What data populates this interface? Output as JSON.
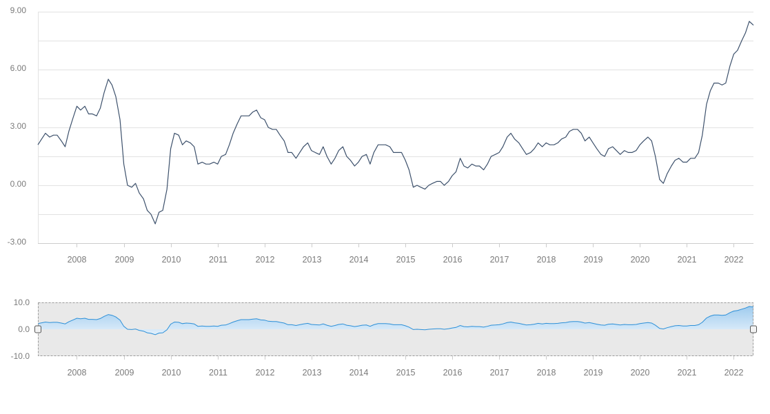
{
  "colors": {
    "main_line": "#3c506b",
    "grid": "#e2e2e2",
    "axis": "#cccccc",
    "label": "#7a7a7a",
    "navigator_line": "#2b8fd8",
    "navigator_fill_top": "#9fcbee",
    "navigator_fill_bottom": "#e3f0fb",
    "navigator_mask": "#e9e9e9",
    "navigator_border": "#999999"
  },
  "chart_data": [
    {
      "name": "main-chart",
      "type": "line",
      "ylim": [
        -3,
        9
      ],
      "y_ticks": [
        "9.00",
        "6.00",
        "3.00",
        "0.00",
        "-3.00"
      ],
      "y_tick_values": [
        9,
        6,
        3,
        0,
        -3
      ],
      "x_ticks": [
        "2008",
        "2009",
        "2010",
        "2011",
        "2012",
        "2013",
        "2014",
        "2015",
        "2016",
        "2017",
        "2018",
        "2019",
        "2020",
        "2021",
        "2022"
      ],
      "x_tick_values": [
        2008,
        2009,
        2010,
        2011,
        2012,
        2013,
        2014,
        2015,
        2016,
        2017,
        2018,
        2019,
        2020,
        2021,
        2022
      ],
      "xlim": [
        2007.17,
        2022.42
      ],
      "grid": true,
      "series": [
        {
          "x": [
            2007.17,
            2007.25,
            2007.33,
            2007.42,
            2007.5,
            2007.58,
            2007.67,
            2007.75,
            2007.83,
            2007.92,
            2008.0,
            2008.08,
            2008.17,
            2008.25,
            2008.33,
            2008.42,
            2008.5,
            2008.58,
            2008.67,
            2008.75,
            2008.83,
            2008.92,
            2009.0,
            2009.08,
            2009.17,
            2009.25,
            2009.33,
            2009.42,
            2009.5,
            2009.58,
            2009.67,
            2009.75,
            2009.83,
            2009.92,
            2010.0,
            2010.08,
            2010.17,
            2010.25,
            2010.33,
            2010.42,
            2010.5,
            2010.58,
            2010.67,
            2010.75,
            2010.83,
            2010.92,
            2011.0,
            2011.08,
            2011.17,
            2011.25,
            2011.33,
            2011.42,
            2011.5,
            2011.58,
            2011.67,
            2011.75,
            2011.83,
            2011.92,
            2012.0,
            2012.08,
            2012.17,
            2012.25,
            2012.33,
            2012.42,
            2012.5,
            2012.58,
            2012.67,
            2012.75,
            2012.83,
            2012.92,
            2013.0,
            2013.08,
            2013.17,
            2013.25,
            2013.33,
            2013.42,
            2013.5,
            2013.58,
            2013.67,
            2013.75,
            2013.83,
            2013.92,
            2014.0,
            2014.08,
            2014.17,
            2014.25,
            2014.33,
            2014.42,
            2014.5,
            2014.58,
            2014.67,
            2014.75,
            2014.83,
            2014.92,
            2015.0,
            2015.08,
            2015.17,
            2015.25,
            2015.33,
            2015.42,
            2015.5,
            2015.58,
            2015.67,
            2015.75,
            2015.83,
            2015.92,
            2016.0,
            2016.08,
            2016.17,
            2016.25,
            2016.33,
            2016.42,
            2016.5,
            2016.58,
            2016.67,
            2016.75,
            2016.83,
            2016.92,
            2017.0,
            2017.08,
            2017.17,
            2017.25,
            2017.33,
            2017.42,
            2017.5,
            2017.58,
            2017.67,
            2017.75,
            2017.83,
            2017.92,
            2018.0,
            2018.08,
            2018.17,
            2018.25,
            2018.33,
            2018.42,
            2018.5,
            2018.58,
            2018.67,
            2018.75,
            2018.83,
            2018.92,
            2019.0,
            2019.08,
            2019.17,
            2019.25,
            2019.33,
            2019.42,
            2019.5,
            2019.58,
            2019.67,
            2019.75,
            2019.83,
            2019.92,
            2020.0,
            2020.08,
            2020.17,
            2020.25,
            2020.33,
            2020.42,
            2020.5,
            2020.58,
            2020.67,
            2020.75,
            2020.83,
            2020.92,
            2021.0,
            2021.08,
            2021.17,
            2021.25,
            2021.33,
            2021.42,
            2021.5,
            2021.58,
            2021.67,
            2021.75,
            2021.83,
            2021.92,
            2022.0,
            2022.08,
            2022.17,
            2022.25,
            2022.33,
            2022.42
          ],
          "values": [
            2.1,
            2.4,
            2.7,
            2.5,
            2.6,
            2.6,
            2.3,
            2.0,
            2.8,
            3.5,
            4.1,
            3.9,
            4.1,
            3.7,
            3.7,
            3.6,
            4.0,
            4.8,
            5.5,
            5.2,
            4.6,
            3.4,
            1.1,
            0.0,
            -0.1,
            0.1,
            -0.4,
            -0.7,
            -1.3,
            -1.5,
            -2.0,
            -1.4,
            -1.3,
            -0.2,
            1.9,
            2.7,
            2.6,
            2.1,
            2.3,
            2.2,
            2.0,
            1.1,
            1.2,
            1.1,
            1.1,
            1.2,
            1.1,
            1.5,
            1.6,
            2.1,
            2.7,
            3.2,
            3.6,
            3.6,
            3.6,
            3.8,
            3.9,
            3.5,
            3.4,
            3.0,
            2.9,
            2.9,
            2.6,
            2.3,
            1.7,
            1.7,
            1.4,
            1.7,
            2.0,
            2.2,
            1.8,
            1.7,
            1.6,
            2.0,
            1.5,
            1.1,
            1.4,
            1.8,
            2.0,
            1.5,
            1.3,
            1.0,
            1.2,
            1.5,
            1.6,
            1.1,
            1.7,
            2.1,
            2.1,
            2.1,
            2.0,
            1.7,
            1.7,
            1.7,
            1.3,
            0.8,
            -0.1,
            0.0,
            -0.1,
            -0.2,
            0.0,
            0.1,
            0.2,
            0.2,
            0.0,
            0.2,
            0.5,
            0.7,
            1.4,
            1.0,
            0.9,
            1.1,
            1.0,
            1.0,
            0.8,
            1.1,
            1.5,
            1.6,
            1.7,
            2.0,
            2.5,
            2.7,
            2.4,
            2.2,
            1.9,
            1.6,
            1.7,
            1.9,
            2.2,
            2.0,
            2.2,
            2.1,
            2.1,
            2.2,
            2.4,
            2.5,
            2.8,
            2.9,
            2.9,
            2.7,
            2.3,
            2.5,
            2.2,
            1.9,
            1.6,
            1.5,
            1.9,
            2.0,
            1.8,
            1.6,
            1.8,
            1.7,
            1.7,
            1.8,
            2.1,
            2.3,
            2.5,
            2.3,
            1.5,
            0.3,
            0.1,
            0.6,
            1.0,
            1.3,
            1.4,
            1.2,
            1.2,
            1.4,
            1.4,
            1.7,
            2.6,
            4.2,
            4.9,
            5.3,
            5.3,
            5.2,
            5.3,
            6.2,
            6.8,
            7.0,
            7.5,
            7.9,
            8.5,
            8.3
          ]
        }
      ]
    },
    {
      "name": "navigator-chart",
      "type": "area",
      "ylim": [
        -10,
        10
      ],
      "y_ticks": [
        "10.0",
        "0.0",
        "-10.0"
      ],
      "y_tick_values": [
        10,
        0,
        -10
      ],
      "x_ticks": [
        "2008",
        "2009",
        "2010",
        "2011",
        "2012",
        "2013",
        "2014",
        "2015",
        "2016",
        "2017",
        "2018",
        "2019",
        "2020",
        "2021",
        "2022"
      ],
      "x_tick_values": [
        2008,
        2009,
        2010,
        2011,
        2012,
        2013,
        2014,
        2015,
        2016,
        2017,
        2018,
        2019,
        2020,
        2021,
        2022
      ],
      "xlim": [
        2007.17,
        2022.42
      ],
      "grid": false,
      "series_source": "main-chart"
    }
  ]
}
